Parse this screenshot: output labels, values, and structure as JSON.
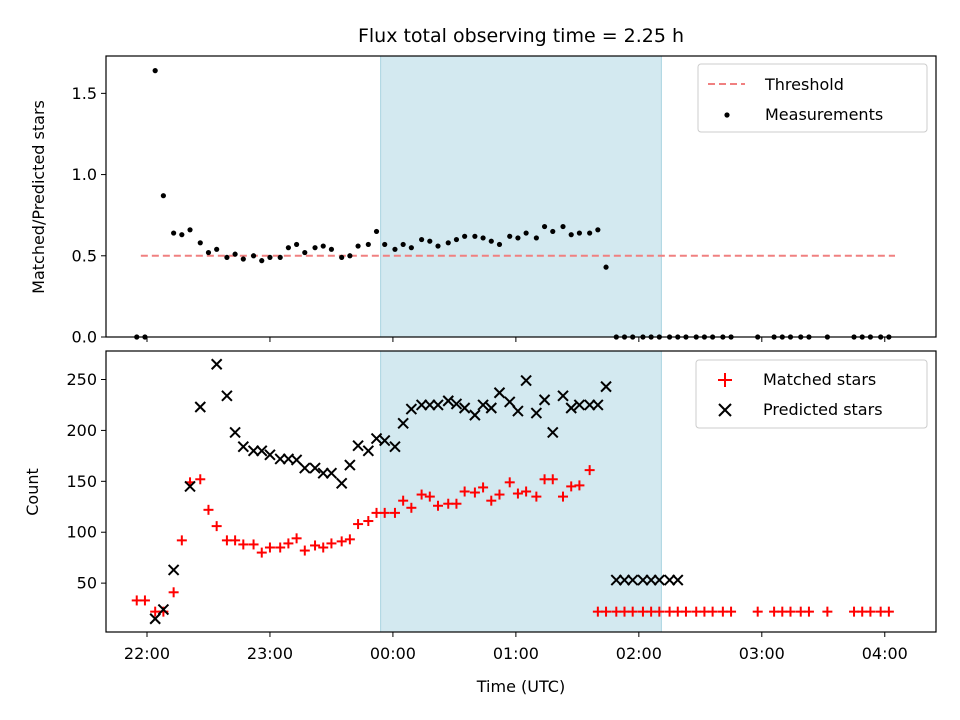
{
  "figure": {
    "title": "Flux total observing time = 2.25 h",
    "xlabel": "Time (UTC)",
    "xticks": [
      "22:00",
      "23:00",
      "00:00",
      "01:00",
      "02:00",
      "03:00",
      "04:00"
    ],
    "highlight_span": {
      "start": "23:54",
      "end": "02:11",
      "color": "#d3e9f0"
    }
  },
  "chart_data": [
    {
      "type": "scatter",
      "title": "Flux total observing time = 2.25 h",
      "xlabel": "",
      "ylabel": "Matched/Predicted stars",
      "xlim": [
        "21:40",
        "04:25"
      ],
      "ylim": [
        0,
        1.73
      ],
      "yticks": [
        "0.0",
        "0.5",
        "1.0",
        "1.5"
      ],
      "legend": "top-right",
      "threshold": {
        "name": "Threshold",
        "value": 0.5,
        "x_start": "21:57",
        "x_end": "04:05",
        "color": "#f08080",
        "style": "dashed"
      },
      "series": [
        {
          "name": "Measurements",
          "color": "#000000",
          "marker": "dot",
          "x": [
            "21:55",
            "21:59",
            "22:04",
            "22:08",
            "22:13",
            "22:17",
            "22:21",
            "22:26",
            "22:30",
            "22:34",
            "22:39",
            "22:43",
            "22:47",
            "22:52",
            "22:56",
            "23:00",
            "23:05",
            "23:09",
            "23:13",
            "23:17",
            "23:22",
            "23:26",
            "23:30",
            "23:35",
            "23:39",
            "23:43",
            "23:48",
            "23:52",
            "23:56",
            "00:01",
            "00:05",
            "00:09",
            "00:14",
            "00:18",
            "00:22",
            "00:27",
            "00:31",
            "00:35",
            "00:40",
            "00:44",
            "00:48",
            "00:52",
            "00:57",
            "01:01",
            "01:05",
            "01:10",
            "01:14",
            "01:18",
            "01:23",
            "01:27",
            "01:31",
            "01:36",
            "01:40",
            "01:44",
            "01:49",
            "01:53",
            "01:57",
            "02:02",
            "02:06",
            "02:10",
            "02:15",
            "02:19",
            "02:23",
            "02:28",
            "02:32",
            "02:36",
            "02:41",
            "02:45",
            "02:58",
            "03:06",
            "03:10",
            "03:14",
            "03:19",
            "03:23",
            "03:32",
            "03:45",
            "03:49",
            "03:53",
            "03:58",
            "04:02"
          ],
          "y": [
            0.0,
            0.0,
            1.64,
            0.87,
            0.64,
            0.63,
            0.66,
            0.58,
            0.52,
            0.54,
            0.49,
            0.51,
            0.48,
            0.5,
            0.47,
            0.49,
            0.49,
            0.55,
            0.57,
            0.52,
            0.55,
            0.56,
            0.54,
            0.49,
            0.5,
            0.56,
            0.57,
            0.65,
            0.57,
            0.54,
            0.57,
            0.55,
            0.6,
            0.59,
            0.56,
            0.58,
            0.6,
            0.62,
            0.62,
            0.61,
            0.59,
            0.57,
            0.62,
            0.61,
            0.64,
            0.61,
            0.68,
            0.65,
            0.68,
            0.63,
            0.64,
            0.64,
            0.66,
            0.43,
            0.0,
            0.0,
            0.0,
            0.0,
            0.0,
            0.0,
            0.0,
            0.0,
            0.0,
            0.0,
            0.0,
            0.0,
            0.0,
            0.0,
            0.0,
            0.0,
            0.0,
            0.0,
            0.0,
            0.0,
            0.0,
            0.0,
            0.0,
            0.0,
            0.0,
            0.0
          ]
        }
      ]
    },
    {
      "type": "scatter",
      "title": "",
      "xlabel": "Time (UTC)",
      "ylabel": "Count",
      "xlim": [
        "21:40",
        "04:25"
      ],
      "ylim": [
        2,
        278
      ],
      "yticks": [
        "50",
        "100",
        "150",
        "200",
        "250"
      ],
      "legend": "top-right",
      "series": [
        {
          "name": "Matched stars",
          "color": "#ff0000",
          "marker": "plus",
          "x": [
            "21:55",
            "21:59",
            "22:04",
            "22:08",
            "22:13",
            "22:17",
            "22:21",
            "22:26",
            "22:30",
            "22:34",
            "22:39",
            "22:43",
            "22:47",
            "22:52",
            "22:56",
            "23:00",
            "23:05",
            "23:09",
            "23:13",
            "23:17",
            "23:22",
            "23:26",
            "23:30",
            "23:35",
            "23:39",
            "23:43",
            "23:48",
            "23:52",
            "23:56",
            "00:01",
            "00:05",
            "00:09",
            "00:14",
            "00:18",
            "00:22",
            "00:27",
            "00:31",
            "00:35",
            "00:40",
            "00:44",
            "00:48",
            "00:52",
            "00:57",
            "01:01",
            "01:05",
            "01:10",
            "01:14",
            "01:18",
            "01:23",
            "01:27",
            "01:31",
            "01:36",
            "01:40",
            "01:44",
            "01:49",
            "01:53",
            "01:57",
            "02:02",
            "02:06",
            "02:10",
            "02:15",
            "02:19",
            "02:23",
            "02:28",
            "02:32",
            "02:36",
            "02:41",
            "02:45",
            "02:58",
            "03:06",
            "03:10",
            "03:14",
            "03:19",
            "03:23",
            "03:32",
            "03:45",
            "03:49",
            "03:53",
            "03:58",
            "04:02"
          ],
          "y": [
            33,
            33,
            22,
            22,
            41,
            92,
            149,
            152,
            122,
            106,
            92,
            92,
            88,
            88,
            80,
            85,
            85,
            89,
            94,
            82,
            87,
            85,
            89,
            91,
            93,
            108,
            111,
            119,
            119,
            119,
            131,
            124,
            137,
            135,
            126,
            128,
            128,
            140,
            139,
            144,
            131,
            137,
            149,
            138,
            140,
            135,
            152,
            152,
            135,
            145,
            146,
            161,
            22,
            22,
            22,
            22,
            22,
            22,
            22,
            22,
            22,
            22,
            22,
            22,
            22,
            22,
            22,
            22,
            22,
            22,
            22,
            22,
            22,
            22,
            22,
            22,
            22,
            22,
            22,
            22
          ]
        },
        {
          "name": "Predicted stars",
          "color": "#000000",
          "marker": "x",
          "x": [
            "22:04",
            "22:08",
            "22:13",
            "22:21",
            "22:26",
            "22:34",
            "22:39",
            "22:43",
            "22:47",
            "22:52",
            "22:56",
            "23:00",
            "23:05",
            "23:09",
            "23:13",
            "23:17",
            "23:22",
            "23:26",
            "23:30",
            "23:35",
            "23:39",
            "23:43",
            "23:48",
            "23:52",
            "23:56",
            "00:01",
            "00:05",
            "00:09",
            "00:14",
            "00:18",
            "00:22",
            "00:27",
            "00:31",
            "00:35",
            "00:40",
            "00:44",
            "00:48",
            "00:52",
            "00:57",
            "01:01",
            "01:05",
            "01:10",
            "01:14",
            "01:18",
            "01:23",
            "01:27",
            "01:31",
            "01:36",
            "01:40",
            "01:44",
            "01:49",
            "01:53",
            "01:57",
            "02:02",
            "02:06",
            "02:10",
            "02:15",
            "02:19"
          ],
          "y": [
            15,
            24,
            63,
            145,
            223,
            265,
            234,
            198,
            184,
            180,
            180,
            176,
            172,
            172,
            171,
            163,
            163,
            158,
            158,
            148,
            166,
            185,
            180,
            192,
            190,
            184,
            207,
            221,
            225,
            225,
            225,
            229,
            226,
            222,
            215,
            225,
            222,
            237,
            228,
            219,
            249,
            217,
            230,
            198,
            234,
            222,
            225,
            225,
            225,
            243,
            53,
            53,
            53,
            53,
            53,
            53,
            53,
            53
          ]
        }
      ]
    }
  ]
}
